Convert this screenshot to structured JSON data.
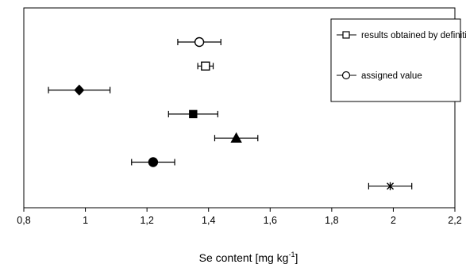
{
  "chart_data": {
    "type": "scatter",
    "title": "",
    "xlabel": "Se content [mg kg-1]",
    "ylabel": "",
    "xlim": [
      0.8,
      2.2
    ],
    "x_ticks": [
      "0,8",
      "1",
      "1,2",
      "1,4",
      "1,6",
      "1,8",
      "2",
      "2,2"
    ],
    "grid": false,
    "legend_position": "top-right",
    "legend": [
      {
        "label": "results obtained by definitive method",
        "marker": "open-square"
      },
      {
        "label": "assigned value",
        "marker": "open-circle"
      }
    ],
    "points": [
      {
        "x": 1.37,
        "x_low": 1.3,
        "x_high": 1.44,
        "marker": "open-circle"
      },
      {
        "x": 1.39,
        "x_low": 1.365,
        "x_high": 1.415,
        "marker": "open-square"
      },
      {
        "x": 0.98,
        "x_low": 0.88,
        "x_high": 1.08,
        "marker": "filled-diamond"
      },
      {
        "x": 1.35,
        "x_low": 1.27,
        "x_high": 1.43,
        "marker": "filled-square"
      },
      {
        "x": 1.49,
        "x_low": 1.42,
        "x_high": 1.56,
        "marker": "filled-triangle"
      },
      {
        "x": 1.22,
        "x_low": 1.15,
        "x_high": 1.29,
        "marker": "filled-circle"
      },
      {
        "x": 1.99,
        "x_low": 1.92,
        "x_high": 2.06,
        "marker": "asterisk"
      }
    ]
  }
}
